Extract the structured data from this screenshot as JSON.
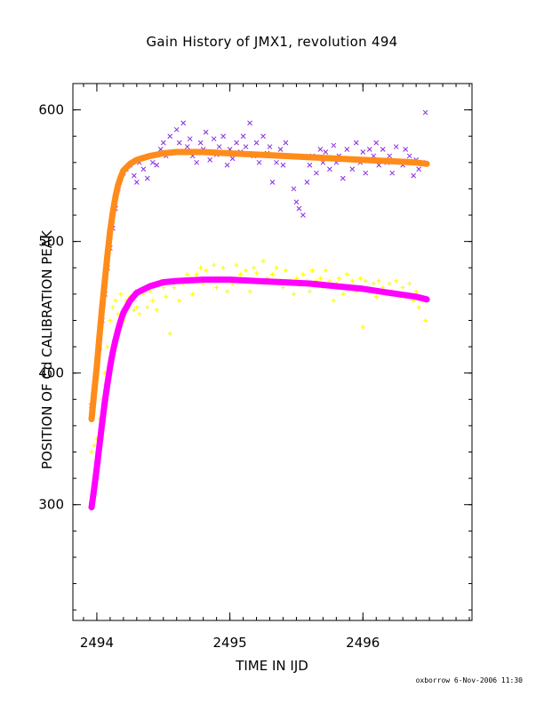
{
  "chart_data": {
    "type": "scatter",
    "title": "Gain History of JMX1, revolution 494",
    "xlabel": "TIME IN IJD",
    "ylabel": "POSITION OF Cd CALIBRATION PEAK",
    "xlim": [
      2493.82,
      2496.82
    ],
    "ylim": [
      212,
      620
    ],
    "xticks": [
      2494,
      2495,
      2496
    ],
    "yticks": [
      300,
      400,
      500,
      600
    ],
    "grid": false,
    "series": [
      {
        "marker": "x",
        "color": "#8a2be2",
        "points": [
          [
            2493.96,
            375
          ],
          [
            2493.98,
            382
          ],
          [
            2494.0,
            400
          ],
          [
            2494.02,
            420
          ],
          [
            2494.04,
            440
          ],
          [
            2494.06,
            460
          ],
          [
            2494.08,
            480
          ],
          [
            2494.1,
            495
          ],
          [
            2494.12,
            510
          ],
          [
            2494.14,
            525
          ],
          [
            2494.16,
            540
          ],
          [
            2494.18,
            548
          ],
          [
            2494.2,
            552
          ],
          [
            2494.22,
            555
          ],
          [
            2494.25,
            558
          ],
          [
            2494.28,
            550
          ],
          [
            2494.3,
            545
          ],
          [
            2494.32,
            560
          ],
          [
            2494.35,
            555
          ],
          [
            2494.38,
            548
          ],
          [
            2494.4,
            565
          ],
          [
            2494.42,
            560
          ],
          [
            2494.45,
            558
          ],
          [
            2494.48,
            570
          ],
          [
            2494.5,
            575
          ],
          [
            2494.52,
            565
          ],
          [
            2494.55,
            580
          ],
          [
            2494.58,
            568
          ],
          [
            2494.6,
            585
          ],
          [
            2494.62,
            575
          ],
          [
            2494.65,
            590
          ],
          [
            2494.68,
            572
          ],
          [
            2494.7,
            578
          ],
          [
            2494.72,
            565
          ],
          [
            2494.75,
            560
          ],
          [
            2494.78,
            575
          ],
          [
            2494.8,
            570
          ],
          [
            2494.82,
            583
          ],
          [
            2494.85,
            562
          ],
          [
            2494.88,
            578
          ],
          [
            2494.9,
            566
          ],
          [
            2494.92,
            572
          ],
          [
            2494.95,
            580
          ],
          [
            2494.98,
            558
          ],
          [
            2495.0,
            570
          ],
          [
            2495.02,
            563
          ],
          [
            2495.05,
            575
          ],
          [
            2495.08,
            568
          ],
          [
            2495.1,
            580
          ],
          [
            2495.12,
            572
          ],
          [
            2495.15,
            590
          ],
          [
            2495.18,
            565
          ],
          [
            2495.2,
            575
          ],
          [
            2495.22,
            560
          ],
          [
            2495.25,
            580
          ],
          [
            2495.28,
            567
          ],
          [
            2495.3,
            572
          ],
          [
            2495.32,
            545
          ],
          [
            2495.35,
            560
          ],
          [
            2495.38,
            570
          ],
          [
            2495.4,
            558
          ],
          [
            2495.42,
            575
          ],
          [
            2495.45,
            565
          ],
          [
            2495.48,
            540
          ],
          [
            2495.5,
            530
          ],
          [
            2495.52,
            525
          ],
          [
            2495.55,
            520
          ],
          [
            2495.58,
            545
          ],
          [
            2495.6,
            558
          ],
          [
            2495.62,
            565
          ],
          [
            2495.65,
            552
          ],
          [
            2495.68,
            570
          ],
          [
            2495.7,
            560
          ],
          [
            2495.72,
            568
          ],
          [
            2495.75,
            555
          ],
          [
            2495.78,
            573
          ],
          [
            2495.8,
            560
          ],
          [
            2495.82,
            565
          ],
          [
            2495.85,
            548
          ],
          [
            2495.88,
            570
          ],
          [
            2495.9,
            562
          ],
          [
            2495.92,
            555
          ],
          [
            2495.95,
            575
          ],
          [
            2495.98,
            560
          ],
          [
            2496.0,
            568
          ],
          [
            2496.02,
            552
          ],
          [
            2496.05,
            570
          ],
          [
            2496.08,
            565
          ],
          [
            2496.1,
            575
          ],
          [
            2496.12,
            558
          ],
          [
            2496.15,
            570
          ],
          [
            2496.18,
            560
          ],
          [
            2496.2,
            565
          ],
          [
            2496.22,
            552
          ],
          [
            2496.25,
            572
          ],
          [
            2496.28,
            560
          ],
          [
            2496.3,
            558
          ],
          [
            2496.32,
            570
          ],
          [
            2496.35,
            565
          ],
          [
            2496.38,
            550
          ],
          [
            2496.4,
            562
          ],
          [
            2496.42,
            555
          ],
          [
            2496.45,
            560
          ],
          [
            2496.47,
            598
          ]
        ]
      },
      {
        "marker": "+",
        "color": "#ffff00",
        "points": [
          [
            2493.96,
            340
          ],
          [
            2493.98,
            345
          ],
          [
            2494.0,
            350
          ],
          [
            2494.02,
            365
          ],
          [
            2494.04,
            380
          ],
          [
            2494.06,
            400
          ],
          [
            2494.08,
            420
          ],
          [
            2494.1,
            440
          ],
          [
            2494.12,
            450
          ],
          [
            2494.14,
            455
          ],
          [
            2494.16,
            445
          ],
          [
            2494.18,
            460
          ],
          [
            2494.2,
            440
          ],
          [
            2494.22,
            455
          ],
          [
            2494.25,
            458
          ],
          [
            2494.28,
            448
          ],
          [
            2494.3,
            450
          ],
          [
            2494.32,
            445
          ],
          [
            2494.35,
            460
          ],
          [
            2494.38,
            450
          ],
          [
            2494.4,
            462
          ],
          [
            2494.42,
            455
          ],
          [
            2494.45,
            448
          ],
          [
            2494.48,
            470
          ],
          [
            2494.5,
            465
          ],
          [
            2494.52,
            458
          ],
          [
            2494.55,
            430
          ],
          [
            2494.58,
            465
          ],
          [
            2494.6,
            470
          ],
          [
            2494.62,
            455
          ],
          [
            2494.65,
            468
          ],
          [
            2494.68,
            475
          ],
          [
            2494.7,
            472
          ],
          [
            2494.72,
            460
          ],
          [
            2494.75,
            475
          ],
          [
            2494.78,
            480
          ],
          [
            2494.8,
            468
          ],
          [
            2494.82,
            478
          ],
          [
            2494.85,
            470
          ],
          [
            2494.88,
            482
          ],
          [
            2494.9,
            465
          ],
          [
            2494.92,
            472
          ],
          [
            2494.95,
            480
          ],
          [
            2494.98,
            462
          ],
          [
            2495.0,
            470
          ],
          [
            2495.02,
            468
          ],
          [
            2495.05,
            482
          ],
          [
            2495.08,
            475
          ],
          [
            2495.1,
            470
          ],
          [
            2495.12,
            478
          ],
          [
            2495.15,
            462
          ],
          [
            2495.18,
            480
          ],
          [
            2495.2,
            476
          ],
          [
            2495.22,
            470
          ],
          [
            2495.25,
            485
          ],
          [
            2495.28,
            472
          ],
          [
            2495.3,
            468
          ],
          [
            2495.32,
            475
          ],
          [
            2495.35,
            480
          ],
          [
            2495.38,
            470
          ],
          [
            2495.4,
            465
          ],
          [
            2495.42,
            478
          ],
          [
            2495.45,
            470
          ],
          [
            2495.48,
            460
          ],
          [
            2495.5,
            472
          ],
          [
            2495.52,
            468
          ],
          [
            2495.55,
            475
          ],
          [
            2495.58,
            470
          ],
          [
            2495.6,
            462
          ],
          [
            2495.62,
            478
          ],
          [
            2495.65,
            470
          ],
          [
            2495.68,
            472
          ],
          [
            2495.7,
            465
          ],
          [
            2495.72,
            478
          ],
          [
            2495.75,
            470
          ],
          [
            2495.78,
            455
          ],
          [
            2495.8,
            468
          ],
          [
            2495.82,
            472
          ],
          [
            2495.85,
            460
          ],
          [
            2495.88,
            475
          ],
          [
            2495.9,
            465
          ],
          [
            2495.92,
            470
          ],
          [
            2495.95,
            462
          ],
          [
            2495.98,
            472
          ],
          [
            2496.0,
            435
          ],
          [
            2496.02,
            470
          ],
          [
            2496.05,
            462
          ],
          [
            2496.08,
            468
          ],
          [
            2496.1,
            458
          ],
          [
            2496.12,
            470
          ],
          [
            2496.15,
            465
          ],
          [
            2496.18,
            460
          ],
          [
            2496.2,
            468
          ],
          [
            2496.22,
            462
          ],
          [
            2496.25,
            470
          ],
          [
            2496.28,
            458
          ],
          [
            2496.3,
            465
          ],
          [
            2496.32,
            460
          ],
          [
            2496.35,
            468
          ],
          [
            2496.38,
            455
          ],
          [
            2496.4,
            462
          ],
          [
            2496.42,
            450
          ],
          [
            2496.45,
            455
          ],
          [
            2496.47,
            440
          ]
        ]
      },
      {
        "marker": "+",
        "color": "#ff8c1a",
        "fit": true,
        "points": [
          [
            2493.96,
            365
          ],
          [
            2493.98,
            385
          ],
          [
            2494.0,
            405
          ],
          [
            2494.02,
            428
          ],
          [
            2494.04,
            450
          ],
          [
            2494.06,
            470
          ],
          [
            2494.08,
            490
          ],
          [
            2494.1,
            508
          ],
          [
            2494.12,
            522
          ],
          [
            2494.14,
            534
          ],
          [
            2494.16,
            543
          ],
          [
            2494.18,
            549
          ],
          [
            2494.2,
            554
          ],
          [
            2494.25,
            559
          ],
          [
            2494.3,
            562
          ],
          [
            2494.4,
            565
          ],
          [
            2494.5,
            567
          ],
          [
            2494.6,
            568
          ],
          [
            2494.8,
            568
          ],
          [
            2495.0,
            567
          ],
          [
            2495.2,
            566
          ],
          [
            2495.4,
            565
          ],
          [
            2495.6,
            564
          ],
          [
            2495.8,
            563
          ],
          [
            2496.0,
            562
          ],
          [
            2496.2,
            561
          ],
          [
            2496.4,
            560
          ],
          [
            2496.48,
            559
          ]
        ]
      },
      {
        "marker": "+",
        "color": "#ff00ff",
        "fit": true,
        "points": [
          [
            2493.96,
            298
          ],
          [
            2493.98,
            312
          ],
          [
            2494.0,
            328
          ],
          [
            2494.02,
            345
          ],
          [
            2494.04,
            362
          ],
          [
            2494.06,
            378
          ],
          [
            2494.08,
            392
          ],
          [
            2494.1,
            405
          ],
          [
            2494.12,
            416
          ],
          [
            2494.14,
            425
          ],
          [
            2494.16,
            433
          ],
          [
            2494.18,
            440
          ],
          [
            2494.2,
            446
          ],
          [
            2494.25,
            455
          ],
          [
            2494.3,
            461
          ],
          [
            2494.4,
            466
          ],
          [
            2494.5,
            469
          ],
          [
            2494.6,
            470
          ],
          [
            2494.8,
            471
          ],
          [
            2495.0,
            471
          ],
          [
            2495.2,
            470
          ],
          [
            2495.4,
            469
          ],
          [
            2495.6,
            468
          ],
          [
            2495.8,
            466
          ],
          [
            2496.0,
            464
          ],
          [
            2496.2,
            461
          ],
          [
            2496.4,
            458
          ],
          [
            2496.48,
            456
          ]
        ]
      }
    ]
  },
  "footer": "oxborrow   6-Nov-2006 11:30"
}
